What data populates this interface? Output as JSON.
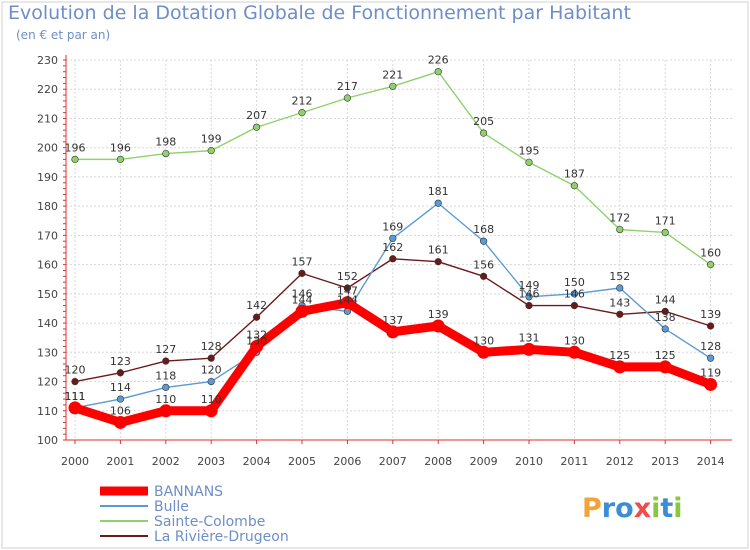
{
  "chart_data": {
    "type": "line",
    "title": "Evolution de la Dotation Globale de Fonctionnement par Habitant",
    "subtitle": "(en € et par an)",
    "xlabel": "",
    "ylabel": "",
    "ylim": [
      100,
      230
    ],
    "yticks": [
      100,
      110,
      120,
      130,
      140,
      150,
      160,
      170,
      180,
      190,
      200,
      210,
      220,
      230
    ],
    "x": [
      "2000",
      "2001",
      "2002",
      "2003",
      "2004",
      "2005",
      "2006",
      "2007",
      "2008",
      "2009",
      "2010",
      "2011",
      "2012",
      "2013",
      "2014"
    ],
    "grid": true,
    "legend_position": "bottom-left",
    "series": [
      {
        "name": "La Rivière-Drugeon",
        "color": "#6b1a1a",
        "values": [
          120,
          123,
          127,
          128,
          142,
          157,
          152,
          162,
          161,
          156,
          146,
          146,
          143,
          144,
          139
        ]
      },
      {
        "name": "Sainte-Colombe",
        "color": "#8fd16b",
        "values": [
          196,
          196,
          198,
          199,
          207,
          212,
          217,
          221,
          226,
          205,
          195,
          187,
          172,
          171,
          160
        ]
      },
      {
        "name": "Bulle",
        "color": "#5b9bd5",
        "values": [
          111,
          114,
          118,
          120,
          130,
          146,
          144,
          169,
          181,
          168,
          149,
          150,
          152,
          138,
          128
        ]
      },
      {
        "name": "BANNANS",
        "color": "#ff0000",
        "values": [
          111,
          106,
          110,
          110,
          132,
          144,
          147,
          137,
          139,
          130,
          131,
          130,
          125,
          125,
          119
        ]
      }
    ]
  },
  "brand": {
    "logo_text": "Proxiti"
  }
}
